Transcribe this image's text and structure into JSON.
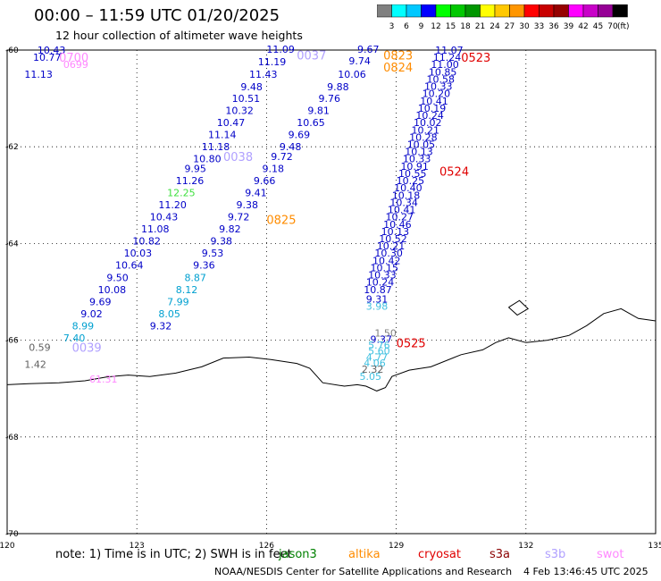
{
  "header": {
    "title": "00:00 – 11:59 UTC 01/20/2025",
    "subtitle": "12 hour collection of altimeter wave heights"
  },
  "colorscale": {
    "unit": "(ft)",
    "labels": [
      "3",
      "6",
      "9",
      "12",
      "15",
      "18",
      "21",
      "24",
      "27",
      "30",
      "33",
      "36",
      "39",
      "42",
      "45",
      "70"
    ],
    "colors": [
      "#808080",
      "#00ffff",
      "#00c8ff",
      "#0000ff",
      "#00ff00",
      "#00c800",
      "#009600",
      "#ffff00",
      "#ffc800",
      "#ff9600",
      "#ff0000",
      "#c80000",
      "#960000",
      "#ff00ff",
      "#c800c8",
      "#960096",
      "#000000"
    ]
  },
  "axes": {
    "x_ticks": [
      "120",
      "123",
      "126",
      "129",
      "132",
      "135"
    ],
    "y_ticks": [
      "-60",
      "-62",
      "-64",
      "-66",
      "-68",
      "-70"
    ]
  },
  "footer": {
    "note": "note:  1) Time is in UTC;  2) SWH is in feet",
    "credit": "NOAA/NESDIS Center for Satellite Applications and Research",
    "timestamp": "4 Feb 13:46:45 UTC 2025"
  },
  "missions": [
    {
      "name": "jason3",
      "color": "#008000"
    },
    {
      "name": "altika",
      "color": "#ff8c00"
    },
    {
      "name": "cryosat",
      "color": "#e00000"
    },
    {
      "name": "s3a",
      "color": "#8b0000"
    },
    {
      "name": "s3b",
      "color": "#b0a0ff"
    },
    {
      "name": "swot",
      "color": "#ff88ff"
    }
  ],
  "map_labels": [
    {
      "text": "0700",
      "lon": 121.2,
      "lat": -60.15,
      "color": "#ff88ff"
    },
    {
      "text": "0037",
      "lon": 126.7,
      "lat": -60.1,
      "color": "#b0a0ff"
    },
    {
      "text": "0823",
      "lon": 128.7,
      "lat": -60.1,
      "color": "#ff8c00"
    },
    {
      "text": "0824",
      "lon": 128.7,
      "lat": -60.35,
      "color": "#ff8c00"
    },
    {
      "text": "0523",
      "lon": 130.5,
      "lat": -60.15,
      "color": "#e00000"
    },
    {
      "text": "0038",
      "lon": 125.0,
      "lat": -62.2,
      "color": "#b0a0ff"
    },
    {
      "text": "0524",
      "lon": 130.0,
      "lat": -62.5,
      "color": "#e00000"
    },
    {
      "text": "0825",
      "lon": 126.0,
      "lat": -63.5,
      "color": "#ff8c00"
    },
    {
      "text": "0525",
      "lon": 129.0,
      "lat": -66.05,
      "color": "#e00000"
    },
    {
      "text": "0039",
      "lon": 121.5,
      "lat": -66.15,
      "color": "#b0a0ff"
    }
  ],
  "observations": [
    {
      "v": "10.43",
      "lon": 120.7,
      "lat": -60.0,
      "c": "#0000c8"
    },
    {
      "v": "10.77",
      "lon": 120.6,
      "lat": -60.15,
      "c": "#0000c8"
    },
    {
      "v": "0699",
      "lon": 121.3,
      "lat": -60.3,
      "c": "#ff88ff"
    },
    {
      "v": "11.13",
      "lon": 120.4,
      "lat": -60.5,
      "c": "#0000c8"
    },
    {
      "v": "11.09",
      "lon": 126.0,
      "lat": -59.98,
      "c": "#0000c8"
    },
    {
      "v": "11.19",
      "lon": 125.8,
      "lat": -60.24,
      "c": "#0000c8"
    },
    {
      "v": "11.43",
      "lon": 125.6,
      "lat": -60.5,
      "c": "#0000c8"
    },
    {
      "v": "9.48",
      "lon": 125.4,
      "lat": -60.76,
      "c": "#0000c8"
    },
    {
      "v": "10.51",
      "lon": 125.2,
      "lat": -61.0,
      "c": "#0000c8"
    },
    {
      "v": "10.32",
      "lon": 125.05,
      "lat": -61.25,
      "c": "#0000c8"
    },
    {
      "v": "10.47",
      "lon": 124.85,
      "lat": -61.5,
      "c": "#0000c8"
    },
    {
      "v": "11.14",
      "lon": 124.65,
      "lat": -61.75,
      "c": "#0000c8"
    },
    {
      "v": "11.18",
      "lon": 124.5,
      "lat": -62.0,
      "c": "#0000c8"
    },
    {
      "v": "10.80",
      "lon": 124.3,
      "lat": -62.25,
      "c": "#0000c8"
    },
    {
      "v": "9.95",
      "lon": 124.1,
      "lat": -62.45,
      "c": "#0000c8"
    },
    {
      "v": "11.26",
      "lon": 123.9,
      "lat": -62.7,
      "c": "#0000c8"
    },
    {
      "v": "12.25",
      "lon": 123.7,
      "lat": -62.95,
      "c": "#40e040"
    },
    {
      "v": "11.20",
      "lon": 123.5,
      "lat": -63.2,
      "c": "#0000c8"
    },
    {
      "v": "10.43",
      "lon": 123.3,
      "lat": -63.45,
      "c": "#0000c8"
    },
    {
      "v": "11.08",
      "lon": 123.1,
      "lat": -63.7,
      "c": "#0000c8"
    },
    {
      "v": "10.82",
      "lon": 122.9,
      "lat": -63.95,
      "c": "#0000c8"
    },
    {
      "v": "10.03",
      "lon": 122.7,
      "lat": -64.2,
      "c": "#0000c8"
    },
    {
      "v": "10.64",
      "lon": 122.5,
      "lat": -64.45,
      "c": "#0000c8"
    },
    {
      "v": "9.50",
      "lon": 122.3,
      "lat": -64.7,
      "c": "#0000c8"
    },
    {
      "v": "10.08",
      "lon": 122.1,
      "lat": -64.95,
      "c": "#0000c8"
    },
    {
      "v": "9.69",
      "lon": 121.9,
      "lat": -65.2,
      "c": "#0000c8"
    },
    {
      "v": "9.02",
      "lon": 121.7,
      "lat": -65.45,
      "c": "#0000c8"
    },
    {
      "v": "8.99",
      "lon": 121.5,
      "lat": -65.7,
      "c": "#00a0d0"
    },
    {
      "v": "7.40",
      "lon": 121.3,
      "lat": -65.95,
      "c": "#00a0d0"
    },
    {
      "v": "9.67",
      "lon": 128.1,
      "lat": -59.98,
      "c": "#0000c8"
    },
    {
      "v": "9.74",
      "lon": 127.9,
      "lat": -60.22,
      "c": "#0000c8"
    },
    {
      "v": "10.06",
      "lon": 127.65,
      "lat": -60.5,
      "c": "#0000c8"
    },
    {
      "v": "9.88",
      "lon": 127.4,
      "lat": -60.76,
      "c": "#0000c8"
    },
    {
      "v": "9.76",
      "lon": 127.2,
      "lat": -61.0,
      "c": "#0000c8"
    },
    {
      "v": "9.81",
      "lon": 126.95,
      "lat": -61.25,
      "c": "#0000c8"
    },
    {
      "v": "10.65",
      "lon": 126.7,
      "lat": -61.5,
      "c": "#0000c8"
    },
    {
      "v": "9.69",
      "lon": 126.5,
      "lat": -61.75,
      "c": "#0000c8"
    },
    {
      "v": "9.48",
      "lon": 126.3,
      "lat": -62.0,
      "c": "#0000c8"
    },
    {
      "v": "9.72",
      "lon": 126.1,
      "lat": -62.2,
      "c": "#0000c8"
    },
    {
      "v": "9.18",
      "lon": 125.9,
      "lat": -62.45,
      "c": "#0000c8"
    },
    {
      "v": "9.66",
      "lon": 125.7,
      "lat": -62.7,
      "c": "#0000c8"
    },
    {
      "v": "9.41",
      "lon": 125.5,
      "lat": -62.95,
      "c": "#0000c8"
    },
    {
      "v": "9.38",
      "lon": 125.3,
      "lat": -63.2,
      "c": "#0000c8"
    },
    {
      "v": "9.72",
      "lon": 125.1,
      "lat": -63.45,
      "c": "#0000c8"
    },
    {
      "v": "9.82",
      "lon": 124.9,
      "lat": -63.7,
      "c": "#0000c8"
    },
    {
      "v": "9.38",
      "lon": 124.7,
      "lat": -63.95,
      "c": "#0000c8"
    },
    {
      "v": "9.53",
      "lon": 124.5,
      "lat": -64.2,
      "c": "#0000c8"
    },
    {
      "v": "9.36",
      "lon": 124.3,
      "lat": -64.45,
      "c": "#0000c8"
    },
    {
      "v": "8.87",
      "lon": 124.1,
      "lat": -64.7,
      "c": "#00a0d0"
    },
    {
      "v": "8.12",
      "lon": 123.9,
      "lat": -64.95,
      "c": "#00a0d0"
    },
    {
      "v": "7.99",
      "lon": 123.7,
      "lat": -65.2,
      "c": "#00a0d0"
    },
    {
      "v": "8.05",
      "lon": 123.5,
      "lat": -65.45,
      "c": "#00a0d0"
    },
    {
      "v": "9.32",
      "lon": 123.3,
      "lat": -65.7,
      "c": "#0000c8"
    },
    {
      "v": "11.07",
      "lon": 129.9,
      "lat": -60.0,
      "c": "#0000c8"
    },
    {
      "v": "11.24",
      "lon": 129.85,
      "lat": -60.15,
      "c": "#0000c8"
    },
    {
      "v": "11.00",
      "lon": 129.8,
      "lat": -60.3,
      "c": "#0000c8"
    },
    {
      "v": "10.85",
      "lon": 129.75,
      "lat": -60.45,
      "c": "#0000c8"
    },
    {
      "v": "10.58",
      "lon": 129.7,
      "lat": -60.6,
      "c": "#0000c8"
    },
    {
      "v": "10.33",
      "lon": 129.65,
      "lat": -60.75,
      "c": "#0000c8"
    },
    {
      "v": "10.20",
      "lon": 129.6,
      "lat": -60.9,
      "c": "#0000c8"
    },
    {
      "v": "10.41",
      "lon": 129.55,
      "lat": -61.05,
      "c": "#0000c8"
    },
    {
      "v": "10.19",
      "lon": 129.5,
      "lat": -61.2,
      "c": "#0000c8"
    },
    {
      "v": "10.24",
      "lon": 129.45,
      "lat": -61.35,
      "c": "#0000c8"
    },
    {
      "v": "10.02",
      "lon": 129.4,
      "lat": -61.5,
      "c": "#0000c8"
    },
    {
      "v": "10.21",
      "lon": 129.35,
      "lat": -61.65,
      "c": "#0000c8"
    },
    {
      "v": "10.28",
      "lon": 129.3,
      "lat": -61.8,
      "c": "#0000c8"
    },
    {
      "v": "10.05",
      "lon": 129.25,
      "lat": -61.95,
      "c": "#0000c8"
    },
    {
      "v": "10.13",
      "lon": 129.2,
      "lat": -62.1,
      "c": "#0000c8"
    },
    {
      "v": "10.33",
      "lon": 129.15,
      "lat": -62.25,
      "c": "#0000c8"
    },
    {
      "v": "10.91",
      "lon": 129.1,
      "lat": -62.4,
      "c": "#0000c8"
    },
    {
      "v": "10.55",
      "lon": 129.05,
      "lat": -62.55,
      "c": "#0000c8"
    },
    {
      "v": "10.25",
      "lon": 129.0,
      "lat": -62.7,
      "c": "#0000c8"
    },
    {
      "v": "10.40",
      "lon": 128.95,
      "lat": -62.85,
      "c": "#0000c8"
    },
    {
      "v": "10.18",
      "lon": 128.9,
      "lat": -63.0,
      "c": "#0000c8"
    },
    {
      "v": "10.34",
      "lon": 128.85,
      "lat": -63.15,
      "c": "#0000c8"
    },
    {
      "v": "10.41",
      "lon": 128.8,
      "lat": -63.3,
      "c": "#0000c8"
    },
    {
      "v": "10.27",
      "lon": 128.75,
      "lat": -63.45,
      "c": "#0000c8"
    },
    {
      "v": "10.46",
      "lon": 128.7,
      "lat": -63.6,
      "c": "#0000c8"
    },
    {
      "v": "10.13",
      "lon": 128.65,
      "lat": -63.75,
      "c": "#0000c8"
    },
    {
      "v": "10.52",
      "lon": 128.6,
      "lat": -63.9,
      "c": "#0000c8"
    },
    {
      "v": "10.21",
      "lon": 128.55,
      "lat": -64.05,
      "c": "#0000c8"
    },
    {
      "v": "10.30",
      "lon": 128.5,
      "lat": -64.2,
      "c": "#0000c8"
    },
    {
      "v": "10.42",
      "lon": 128.45,
      "lat": -64.35,
      "c": "#0000c8"
    },
    {
      "v": "10.15",
      "lon": 128.4,
      "lat": -64.5,
      "c": "#0000c8"
    },
    {
      "v": "10.33",
      "lon": 128.35,
      "lat": -64.65,
      "c": "#0000c8"
    },
    {
      "v": "10.24",
      "lon": 128.3,
      "lat": -64.8,
      "c": "#0000c8"
    },
    {
      "v": "10.87",
      "lon": 128.25,
      "lat": -64.95,
      "c": "#0000c8"
    },
    {
      "v": "9.31",
      "lon": 128.3,
      "lat": -65.15,
      "c": "#0000c8"
    },
    {
      "v": "3.98",
      "lon": 128.3,
      "lat": -65.3,
      "c": "#40c0e0"
    },
    {
      "v": "1.50",
      "lon": 128.5,
      "lat": -65.85,
      "c": "#808080"
    },
    {
      "v": "9.37",
      "lon": 128.4,
      "lat": -65.98,
      "c": "#0000c8"
    },
    {
      "v": "5.76",
      "lon": 128.35,
      "lat": -66.1,
      "c": "#40c0e0"
    },
    {
      "v": "5.60",
      "lon": 128.35,
      "lat": -66.22,
      "c": "#40c0e0"
    },
    {
      "v": "4.77",
      "lon": 128.3,
      "lat": -66.35,
      "c": "#40c0e0"
    },
    {
      "v": "4.06",
      "lon": 128.25,
      "lat": -66.47,
      "c": "#40c0e0"
    },
    {
      "v": "2.32",
      "lon": 128.2,
      "lat": -66.6,
      "c": "#606060"
    },
    {
      "v": "5.05",
      "lon": 128.15,
      "lat": -66.75,
      "c": "#40c0e0"
    },
    {
      "v": "0.59",
      "lon": 120.5,
      "lat": -66.15,
      "c": "#606060"
    },
    {
      "v": "1.42",
      "lon": 120.4,
      "lat": -66.5,
      "c": "#606060"
    },
    {
      "v": "61.31",
      "lon": 121.9,
      "lat": -66.8,
      "c": "#ff88ff"
    }
  ],
  "coastline": [
    [
      120.0,
      -66.92
    ],
    [
      120.5,
      -66.9
    ],
    [
      121.2,
      -66.88
    ],
    [
      121.8,
      -66.84
    ],
    [
      122.3,
      -66.76
    ],
    [
      122.8,
      -66.72
    ],
    [
      123.3,
      -66.75
    ],
    [
      123.9,
      -66.68
    ],
    [
      124.5,
      -66.55
    ],
    [
      125.0,
      -66.37
    ],
    [
      125.6,
      -66.35
    ],
    [
      126.1,
      -66.4
    ],
    [
      126.7,
      -66.48
    ],
    [
      127.0,
      -66.58
    ],
    [
      127.3,
      -66.88
    ],
    [
      127.8,
      -66.95
    ],
    [
      128.1,
      -66.92
    ],
    [
      128.3,
      -66.95
    ],
    [
      128.55,
      -67.05
    ],
    [
      128.75,
      -66.98
    ],
    [
      128.9,
      -66.75
    ],
    [
      129.3,
      -66.62
    ],
    [
      129.8,
      -66.55
    ],
    [
      130.5,
      -66.3
    ],
    [
      131.0,
      -66.2
    ],
    [
      131.3,
      -66.05
    ],
    [
      131.6,
      -65.95
    ],
    [
      132.0,
      -66.05
    ],
    [
      132.5,
      -66.0
    ],
    [
      133.0,
      -65.9
    ],
    [
      133.4,
      -65.7
    ],
    [
      133.8,
      -65.45
    ],
    [
      134.2,
      -65.35
    ],
    [
      134.6,
      -65.55
    ],
    [
      135.0,
      -65.6
    ]
  ],
  "island": [
    [
      131.6,
      -65.32
    ],
    [
      131.85,
      -65.18
    ],
    [
      132.05,
      -65.35
    ],
    [
      131.8,
      -65.48
    ],
    [
      131.6,
      -65.32
    ]
  ]
}
